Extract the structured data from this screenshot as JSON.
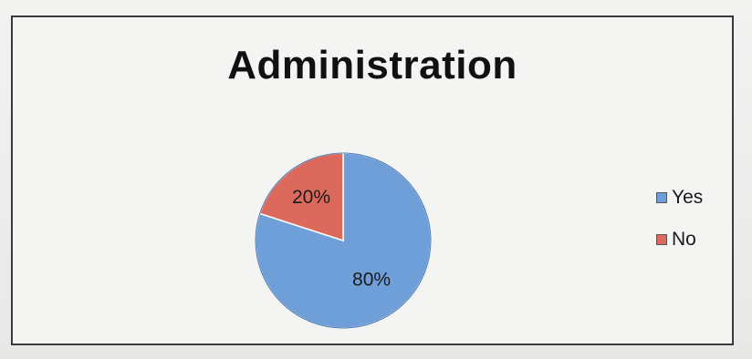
{
  "chart_data": {
    "type": "pie",
    "title": "Administration",
    "slices": [
      {
        "label": "Yes",
        "value": 80,
        "display": "80%",
        "color": "#6f9fd9"
      },
      {
        "label": "No",
        "value": 20,
        "display": "20%",
        "color": "#dc6a5c"
      }
    ],
    "legend": {
      "position": "right",
      "items": [
        "Yes",
        "No"
      ]
    }
  },
  "colors": {
    "yes": "#6f9fd9",
    "no": "#dc6a5c",
    "border": "#3a3a3a"
  }
}
